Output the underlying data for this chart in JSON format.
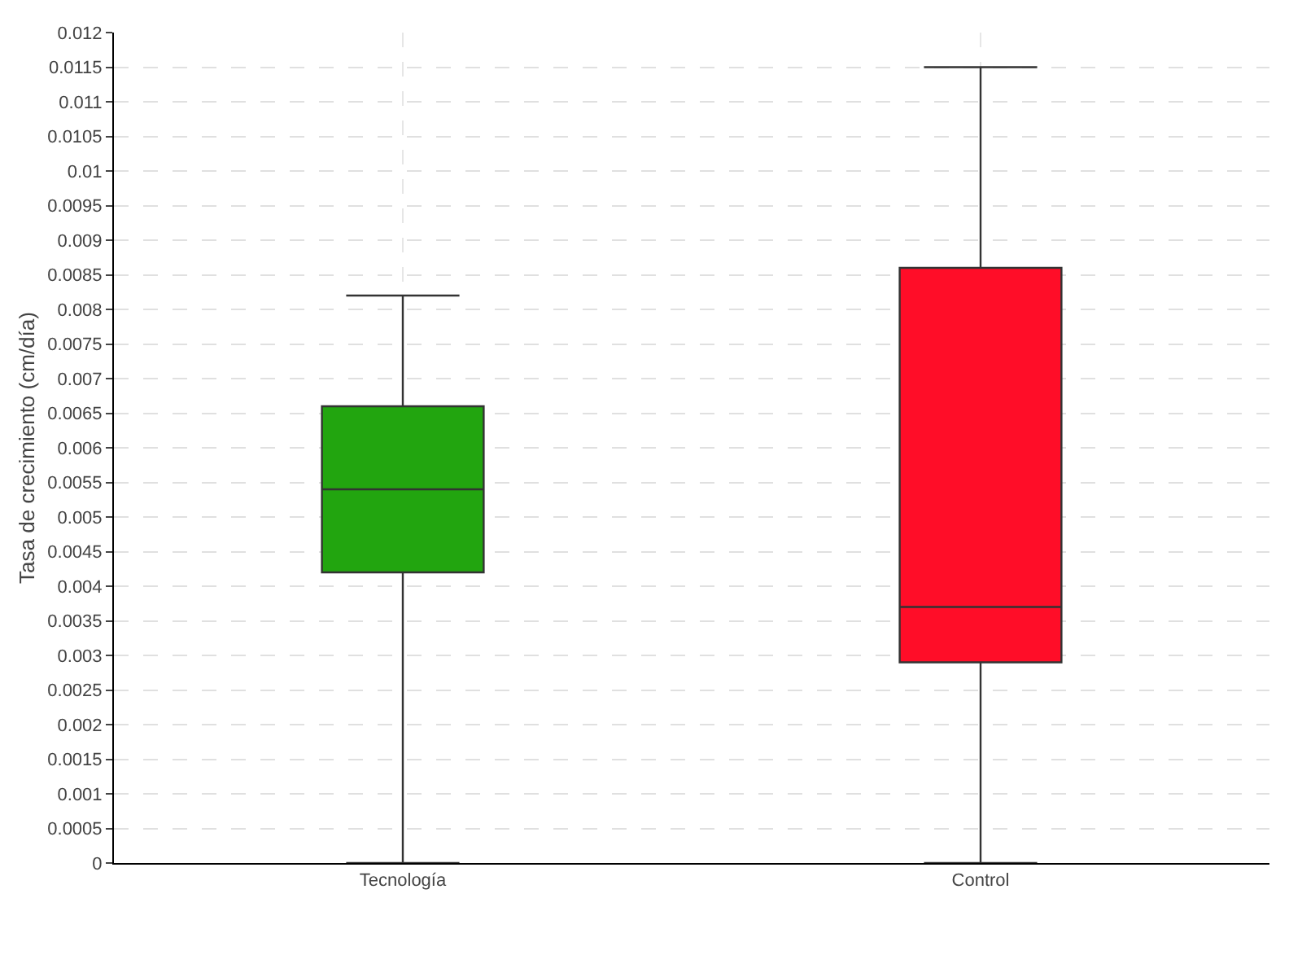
{
  "chart_data": {
    "type": "box",
    "ylabel": "Tasa de crecimiento (cm/día)",
    "categories": [
      "Tecnología",
      "Control"
    ],
    "colors": [
      "#22a50f",
      "#ff0d28"
    ],
    "boxes": [
      {
        "low": 0,
        "q1": 0.0042,
        "median": 0.0054,
        "q3": 0.0066,
        "high": 0.0082
      },
      {
        "low": 0,
        "q1": 0.0029,
        "median": 0.0037,
        "q3": 0.0086,
        "high": 0.0115
      }
    ],
    "ylim": [
      0,
      0.012
    ],
    "yticks": [
      0,
      0.0005,
      0.001,
      0.0015,
      0.002,
      0.0025,
      0.003,
      0.0035,
      0.004,
      0.0045,
      0.005,
      0.0055,
      0.006,
      0.0065,
      0.007,
      0.0075,
      0.008,
      0.0085,
      0.009,
      0.0095,
      0.01,
      0.0105,
      0.011,
      0.0115,
      0.012
    ],
    "grid": true
  }
}
